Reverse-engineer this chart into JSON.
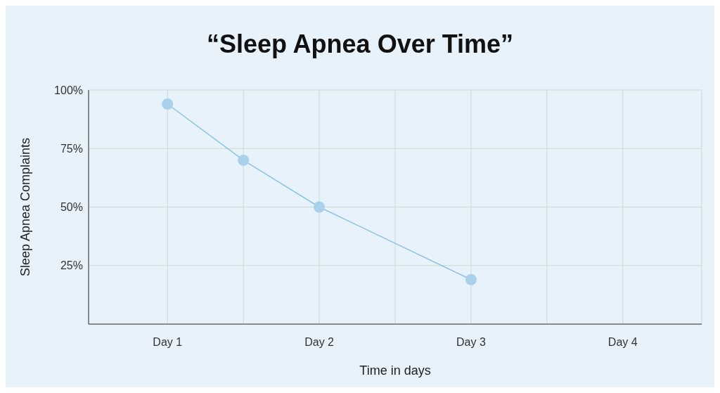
{
  "chart_data": {
    "type": "line",
    "title": "“Sleep Apnea Over Time”",
    "xlabel": "Time in days",
    "ylabel": "Sleep Apnea Complaints",
    "categories": [
      "Day 1",
      null,
      "Day 2",
      null,
      "Day 3",
      null,
      "Day 4"
    ],
    "series": [
      {
        "color": "#8cc2e2",
        "values": [
          94,
          70,
          50,
          null,
          19,
          null,
          null
        ]
      }
    ],
    "ylim": [
      0,
      100
    ],
    "yticks": [
      {
        "value": 25,
        "label": "25%"
      },
      {
        "value": 50,
        "label": "50%"
      },
      {
        "value": 75,
        "label": "75%"
      },
      {
        "value": 100,
        "label": "100%"
      }
    ],
    "grid": true,
    "marker": "circle",
    "line_style": "solid"
  }
}
